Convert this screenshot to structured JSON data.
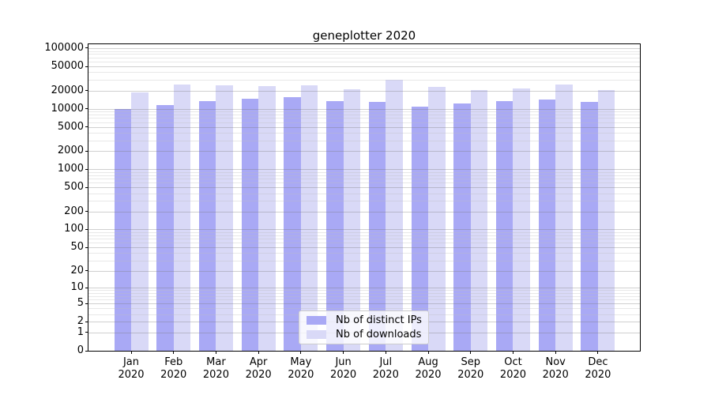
{
  "title": "geneplotter 2020",
  "chart_data": {
    "type": "bar",
    "title": "geneplotter 2020",
    "categories": [
      "Jan 2020",
      "Feb 2020",
      "Mar 2020",
      "Apr 2020",
      "May 2020",
      "Jun 2020",
      "Jul 2020",
      "Aug 2020",
      "Sep 2020",
      "Oct 2020",
      "Nov 2020",
      "Dec 2020"
    ],
    "series": [
      {
        "name": "Nb of distinct IPs",
        "color": "#a9a9f5",
        "values": [
          10000,
          11500,
          13300,
          14600,
          15500,
          13300,
          13000,
          10800,
          12200,
          13300,
          14200,
          12900
        ]
      },
      {
        "name": "Nb of downloads",
        "color": "#d9d9f7",
        "values": [
          18600,
          25000,
          24300,
          23600,
          24300,
          20900,
          30000,
          22900,
          20300,
          21600,
          25000,
          20300
        ]
      }
    ],
    "y_ticks": [
      0,
      1,
      2,
      5,
      10,
      20,
      50,
      100,
      200,
      500,
      1000,
      2000,
      5000,
      10000,
      20000,
      50000,
      100000
    ],
    "y_scale": "log10(value+1)",
    "ylim": [
      0,
      100000
    ],
    "grid": true,
    "grid_minor": true,
    "legend_position": "lower center",
    "colors": {
      "bar_ips": "#a9a9f5",
      "bar_downloads": "#d9d9f7",
      "grid_major": "#c0c0c0",
      "grid_minor": "#e6e6e6",
      "axis": "#000000"
    }
  }
}
